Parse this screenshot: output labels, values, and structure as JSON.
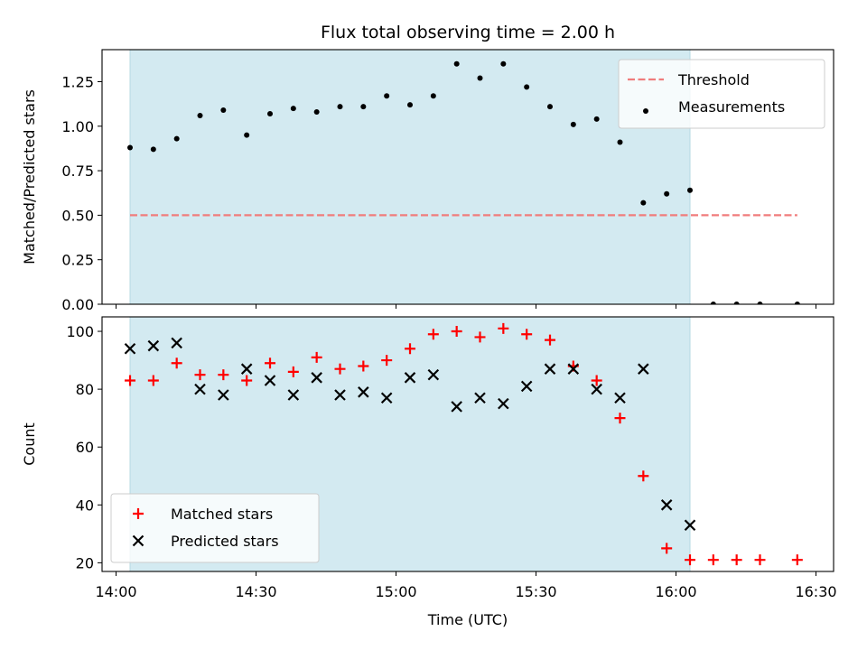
{
  "chart_data": {
    "title": "Flux total observing time = 2.00 h",
    "xlabel": "Time (UTC)",
    "x_ticks": [
      "14:00",
      "14:30",
      "15:00",
      "15:30",
      "16:00",
      "16:30"
    ],
    "shaded_region": {
      "start": "14:03",
      "end": "16:03",
      "color": "#d3eaf1"
    },
    "panels": [
      {
        "type": "scatter",
        "ylabel": "Matched/Predicted stars",
        "ylim": [
          0,
          1.43
        ],
        "y_ticks": [
          "0.00",
          "0.25",
          "0.50",
          "0.75",
          "1.00",
          "1.25"
        ],
        "threshold": {
          "name": "Threshold",
          "value": 0.5,
          "x_start": "14:03",
          "x_end": "16:26",
          "color": "#f07c7c"
        },
        "series": [
          {
            "name": "Measurements",
            "color": "#000000",
            "marker": "dot",
            "points": [
              [
                "14:03",
                0.88
              ],
              [
                "14:08",
                0.87
              ],
              [
                "14:13",
                0.93
              ],
              [
                "14:18",
                1.06
              ],
              [
                "14:23",
                1.09
              ],
              [
                "14:28",
                0.95
              ],
              [
                "14:33",
                1.07
              ],
              [
                "14:38",
                1.1
              ],
              [
                "14:43",
                1.08
              ],
              [
                "14:48",
                1.11
              ],
              [
                "14:53",
                1.11
              ],
              [
                "14:58",
                1.17
              ],
              [
                "15:03",
                1.12
              ],
              [
                "15:08",
                1.17
              ],
              [
                "15:13",
                1.35
              ],
              [
                "15:18",
                1.27
              ],
              [
                "15:23",
                1.35
              ],
              [
                "15:28",
                1.22
              ],
              [
                "15:33",
                1.11
              ],
              [
                "15:38",
                1.01
              ],
              [
                "15:43",
                1.04
              ],
              [
                "15:48",
                0.91
              ],
              [
                "15:53",
                0.57
              ],
              [
                "15:58",
                0.62
              ],
              [
                "16:03",
                0.64
              ],
              [
                "16:08",
                0.0
              ],
              [
                "16:13",
                0.0
              ],
              [
                "16:18",
                0.0
              ],
              [
                "16:26",
                0.0
              ]
            ]
          }
        ],
        "legend_position": "top-right"
      },
      {
        "type": "scatter",
        "ylabel": "Count",
        "ylim": [
          17,
          105
        ],
        "y_ticks": [
          "20",
          "40",
          "60",
          "80",
          "100"
        ],
        "series": [
          {
            "name": "Matched stars",
            "color": "#ff0000",
            "marker": "plus",
            "points": [
              [
                "14:03",
                83
              ],
              [
                "14:08",
                83
              ],
              [
                "14:13",
                89
              ],
              [
                "14:18",
                85
              ],
              [
                "14:23",
                85
              ],
              [
                "14:28",
                83
              ],
              [
                "14:33",
                89
              ],
              [
                "14:38",
                86
              ],
              [
                "14:43",
                91
              ],
              [
                "14:48",
                87
              ],
              [
                "14:53",
                88
              ],
              [
                "14:58",
                90
              ],
              [
                "15:03",
                94
              ],
              [
                "15:08",
                99
              ],
              [
                "15:13",
                100
              ],
              [
                "15:18",
                98
              ],
              [
                "15:23",
                101
              ],
              [
                "15:28",
                99
              ],
              [
                "15:33",
                97
              ],
              [
                "15:38",
                88
              ],
              [
                "15:43",
                83
              ],
              [
                "15:48",
                70
              ],
              [
                "15:53",
                50
              ],
              [
                "15:58",
                25
              ],
              [
                "16:03",
                21
              ],
              [
                "16:08",
                21
              ],
              [
                "16:13",
                21
              ],
              [
                "16:18",
                21
              ],
              [
                "16:26",
                21
              ]
            ]
          },
          {
            "name": "Predicted stars",
            "color": "#000000",
            "marker": "x",
            "points": [
              [
                "14:03",
                94
              ],
              [
                "14:08",
                95
              ],
              [
                "14:13",
                96
              ],
              [
                "14:18",
                80
              ],
              [
                "14:23",
                78
              ],
              [
                "14:28",
                87
              ],
              [
                "14:33",
                83
              ],
              [
                "14:38",
                78
              ],
              [
                "14:43",
                84
              ],
              [
                "14:48",
                78
              ],
              [
                "14:53",
                79
              ],
              [
                "14:58",
                77
              ],
              [
                "15:03",
                84
              ],
              [
                "15:08",
                85
              ],
              [
                "15:13",
                74
              ],
              [
                "15:18",
                77
              ],
              [
                "15:23",
                75
              ],
              [
                "15:28",
                81
              ],
              [
                "15:33",
                87
              ],
              [
                "15:38",
                87
              ],
              [
                "15:43",
                80
              ],
              [
                "15:48",
                77
              ],
              [
                "15:53",
                87
              ],
              [
                "15:58",
                40
              ],
              [
                "16:03",
                33
              ]
            ]
          }
        ],
        "legend_position": "bottom-left"
      }
    ]
  }
}
